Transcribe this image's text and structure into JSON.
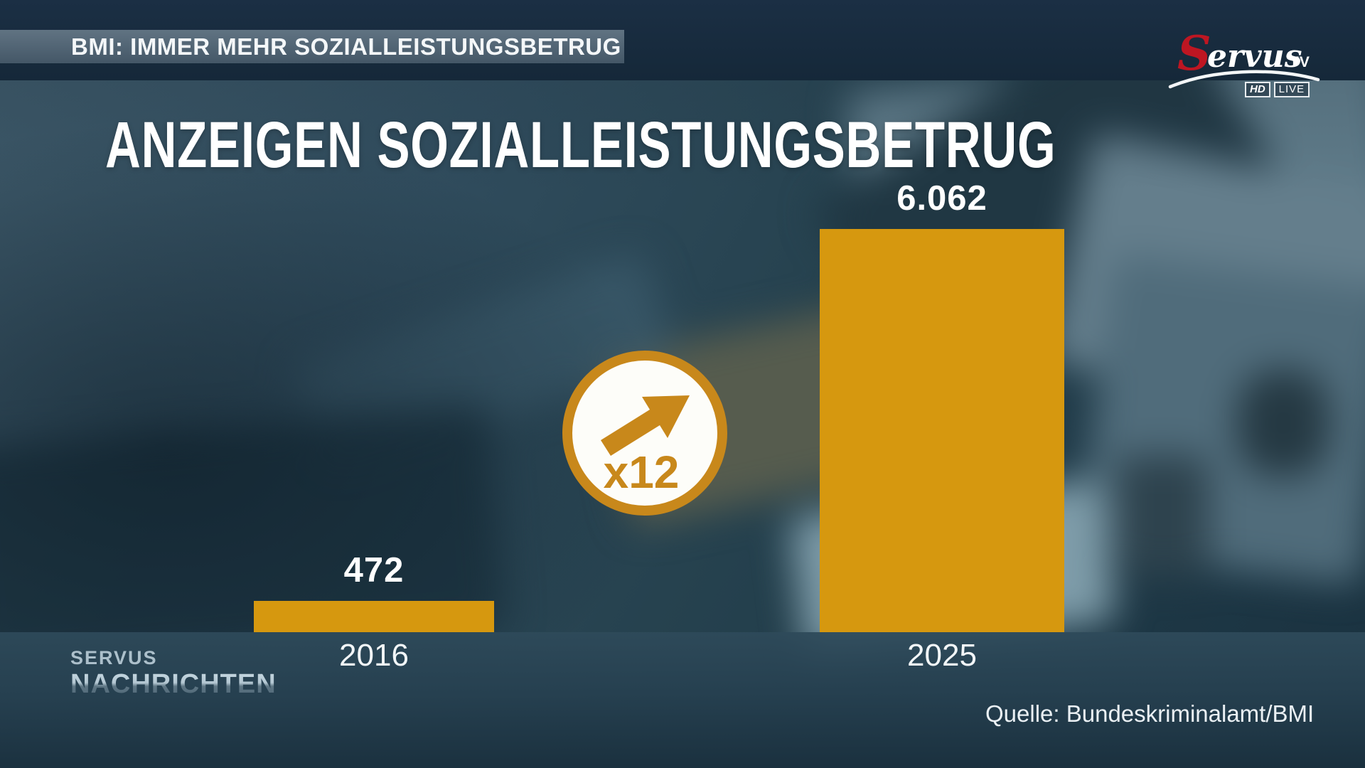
{
  "channel": {
    "logo_initial": "S",
    "logo_rest": "ervus",
    "logo_suffix": "TV",
    "hd": "HD",
    "live": "LIVE"
  },
  "ticker": {
    "headline": "BMI: IMMER MEHR SOZIALLEISTUNGSBETRUG"
  },
  "chart_data": {
    "type": "bar",
    "title": "ANZEIGEN SOZIALLEISTUNGSBETRUG",
    "categories": [
      "2016",
      "2025"
    ],
    "values": [
      472,
      6062
    ],
    "value_labels": [
      "472",
      "6.062"
    ],
    "multiplier_annotation": "x12",
    "source": "Quelle: Bundeskriminalamt/BMI",
    "bar_color": "#D6980F",
    "badge_color": "#C8881B",
    "ylim": [
      0,
      6062
    ],
    "grid": false,
    "legend": "none"
  },
  "footer": {
    "news_logo_line1": "SERVUS",
    "news_logo_line2": "NACHRICHTEN",
    "source_label": "Quelle: Bundeskriminalamt/BMI"
  },
  "colors": {
    "accent_gold": "#D6980F",
    "badge_gold": "#C8881B",
    "top_band": "#16293A",
    "ticker_bg": "#54697A",
    "bottom_band": "#233C4C",
    "text_white": "#FFFFFF"
  }
}
